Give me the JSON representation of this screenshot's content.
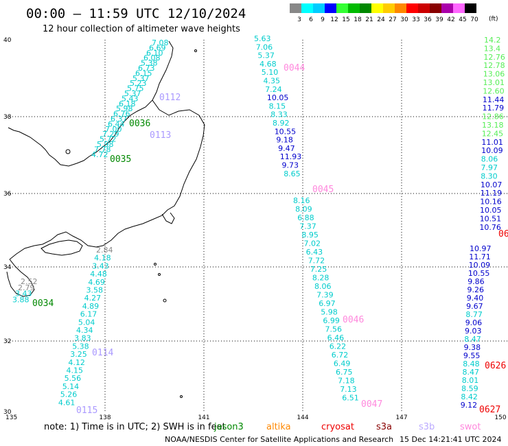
{
  "header": {
    "title": "00:00 – 11:59 UTC 12/10/2024",
    "subtitle": "12 hour collection of altimeter wave heights"
  },
  "legend": {
    "unit": "(ft)",
    "bins": [
      {
        "label": "3",
        "color": "#888888"
      },
      {
        "label": "6",
        "color": "#00ffff"
      },
      {
        "label": "9",
        "color": "#00ccff"
      },
      {
        "label": "12",
        "color": "#0000ff"
      },
      {
        "label": "15",
        "color": "#33ff33"
      },
      {
        "label": "18",
        "color": "#00bb00"
      },
      {
        "label": "21",
        "color": "#008800"
      },
      {
        "label": "24",
        "color": "#ffff00"
      },
      {
        "label": "27",
        "color": "#ffcc00"
      },
      {
        "label": "30",
        "color": "#ff8800"
      },
      {
        "label": "33",
        "color": "#ff0000"
      },
      {
        "label": "36",
        "color": "#cc0000"
      },
      {
        "label": "39",
        "color": "#880000"
      },
      {
        "label": "42",
        "color": "#aa00aa"
      },
      {
        "label": "45",
        "color": "#ff66ff"
      },
      {
        "label": "70",
        "color": "#000000"
      }
    ]
  },
  "map": {
    "lat_ticks": [
      "40",
      "38",
      "36",
      "34",
      "32",
      "30"
    ],
    "lon_ticks": [
      "135",
      "138",
      "141",
      "144",
      "147",
      "150"
    ],
    "colors": {
      "gray": "#888888",
      "cyan": "#00cccc",
      "blue": "#0000cc",
      "lgreen": "#55ee55",
      "green": "#008800",
      "red": "#ee0000",
      "pink": "#ff88dd",
      "lav": "#aa99ff"
    },
    "passes": [
      {
        "label": "0044",
        "color": "pink"
      },
      {
        "label": "0112",
        "color": "lav"
      },
      {
        "label": "0036",
        "color": "green"
      },
      {
        "label": "0113",
        "color": "lav"
      },
      {
        "label": "0035",
        "color": "green"
      },
      {
        "label": "0045",
        "color": "pink"
      },
      {
        "label": "0034",
        "color": "green"
      },
      {
        "label": "0046",
        "color": "pink"
      },
      {
        "label": "0114",
        "color": "lav"
      },
      {
        "label": "0626",
        "color": "red"
      },
      {
        "label": "0115",
        "color": "lav"
      },
      {
        "label": "0047",
        "color": "pink"
      },
      {
        "label": "0627",
        "color": "red"
      },
      {
        "label": "06",
        "color": "red"
      }
    ],
    "tracks": [
      {
        "name": "track-a",
        "values": [
          {
            "t": "5.63",
            "c": "cyan"
          },
          {
            "t": "7.06",
            "c": "cyan"
          },
          {
            "t": "5.37",
            "c": "cyan"
          },
          {
            "t": "4.68",
            "c": "cyan"
          },
          {
            "t": "5.10",
            "c": "cyan"
          },
          {
            "t": "4.35",
            "c": "cyan"
          },
          {
            "t": "7.24",
            "c": "cyan"
          },
          {
            "t": "10.05",
            "c": "blue"
          },
          {
            "t": "8.15",
            "c": "cyan"
          },
          {
            "t": "8.33",
            "c": "cyan"
          },
          {
            "t": "8.92",
            "c": "cyan"
          },
          {
            "t": "10.55",
            "c": "blue"
          },
          {
            "t": "9.18",
            "c": "blue"
          },
          {
            "t": "9.47",
            "c": "blue"
          },
          {
            "t": "11.93",
            "c": "blue"
          },
          {
            "t": "9.73",
            "c": "blue"
          },
          {
            "t": "8.65",
            "c": "cyan"
          }
        ]
      },
      {
        "name": "track-b",
        "values": [
          {
            "t": "8.16",
            "c": "cyan"
          },
          {
            "t": "8.09",
            "c": "cyan"
          },
          {
            "t": "6.88",
            "c": "cyan"
          },
          {
            "t": "7.37",
            "c": "cyan"
          },
          {
            "t": "8.95",
            "c": "cyan"
          },
          {
            "t": "7.02",
            "c": "cyan"
          },
          {
            "t": "6.43",
            "c": "cyan"
          },
          {
            "t": "7.72",
            "c": "cyan"
          },
          {
            "t": "7.25",
            "c": "cyan"
          },
          {
            "t": "8.28",
            "c": "cyan"
          },
          {
            "t": "8.06",
            "c": "cyan"
          },
          {
            "t": "7.39",
            "c": "cyan"
          },
          {
            "t": "6.97",
            "c": "cyan"
          },
          {
            "t": "5.98",
            "c": "cyan"
          },
          {
            "t": "6.99",
            "c": "cyan"
          },
          {
            "t": "7.56",
            "c": "cyan"
          },
          {
            "t": "6.46",
            "c": "cyan"
          },
          {
            "t": "6.22",
            "c": "cyan"
          },
          {
            "t": "6.72",
            "c": "cyan"
          },
          {
            "t": "6.49",
            "c": "cyan"
          },
          {
            "t": "6.75",
            "c": "cyan"
          },
          {
            "t": "7.18",
            "c": "cyan"
          },
          {
            "t": "7.13",
            "c": "cyan"
          },
          {
            "t": "6.51",
            "c": "cyan"
          }
        ]
      },
      {
        "name": "track-c",
        "values": [
          {
            "t": "14.2",
            "c": "lgreen"
          },
          {
            "t": "13.4",
            "c": "lgreen"
          },
          {
            "t": "12.76",
            "c": "lgreen"
          },
          {
            "t": "12.78",
            "c": "lgreen"
          },
          {
            "t": "13.06",
            "c": "lgreen"
          },
          {
            "t": "13.01",
            "c": "lgreen"
          },
          {
            "t": "12.60",
            "c": "lgreen"
          },
          {
            "t": "11.44",
            "c": "blue"
          },
          {
            "t": "11.79",
            "c": "blue"
          },
          {
            "t": "12.86",
            "c": "lgreen"
          },
          {
            "t": "13.18",
            "c": "lgreen"
          },
          {
            "t": "12.45",
            "c": "lgreen"
          },
          {
            "t": "11.01",
            "c": "blue"
          },
          {
            "t": "10.09",
            "c": "blue"
          },
          {
            "t": "8.06",
            "c": "cyan"
          },
          {
            "t": "7.97",
            "c": "cyan"
          },
          {
            "t": "8.30",
            "c": "cyan"
          },
          {
            "t": "10.07",
            "c": "blue"
          },
          {
            "t": "11.19",
            "c": "blue"
          },
          {
            "t": "10.16",
            "c": "blue"
          },
          {
            "t": "10.05",
            "c": "blue"
          },
          {
            "t": "10.51",
            "c": "blue"
          },
          {
            "t": "10.76",
            "c": "blue"
          }
        ]
      },
      {
        "name": "track-d",
        "values": [
          {
            "t": "10.97",
            "c": "blue"
          },
          {
            "t": "11.71",
            "c": "blue"
          },
          {
            "t": "10.09",
            "c": "blue"
          },
          {
            "t": "10.55",
            "c": "blue"
          },
          {
            "t": "9.86",
            "c": "blue"
          },
          {
            "t": "9.26",
            "c": "blue"
          },
          {
            "t": "9.40",
            "c": "blue"
          },
          {
            "t": "9.67",
            "c": "blue"
          },
          {
            "t": "8.77",
            "c": "cyan"
          },
          {
            "t": "9.06",
            "c": "blue"
          },
          {
            "t": "9.03",
            "c": "blue"
          },
          {
            "t": "8.47",
            "c": "cyan"
          },
          {
            "t": "9.38",
            "c": "blue"
          },
          {
            "t": "9.55",
            "c": "blue"
          },
          {
            "t": "8.48",
            "c": "cyan"
          },
          {
            "t": "8.47",
            "c": "cyan"
          },
          {
            "t": "8.01",
            "c": "cyan"
          },
          {
            "t": "8.59",
            "c": "cyan"
          },
          {
            "t": "8.42",
            "c": "cyan"
          },
          {
            "t": "9.12",
            "c": "blue"
          }
        ]
      },
      {
        "name": "track-e",
        "values": [
          {
            "t": "7.08",
            "c": "cyan"
          },
          {
            "t": "6.69",
            "c": "cyan"
          },
          {
            "t": "6.10",
            "c": "cyan"
          },
          {
            "t": "6.08",
            "c": "cyan"
          },
          {
            "t": "5.38",
            "c": "cyan"
          },
          {
            "t": "6.73",
            "c": "cyan"
          },
          {
            "t": "6.15",
            "c": "cyan"
          },
          {
            "t": "5.37",
            "c": "cyan"
          },
          {
            "t": "5.23",
            "c": "cyan"
          },
          {
            "t": "5.75",
            "c": "cyan"
          },
          {
            "t": "5.37",
            "c": "cyan"
          },
          {
            "t": "5.43",
            "c": "cyan"
          },
          {
            "t": "6.18",
            "c": "cyan"
          },
          {
            "t": "5.98",
            "c": "cyan"
          },
          {
            "t": "6.76",
            "c": "cyan"
          },
          {
            "t": "6.37",
            "c": "cyan"
          },
          {
            "t": "6.44",
            "c": "cyan"
          },
          {
            "t": "7.00",
            "c": "cyan"
          },
          {
            "t": "7.29",
            "c": "cyan"
          },
          {
            "t": "5.72",
            "c": "cyan"
          },
          {
            "t": "5.98",
            "c": "cyan"
          },
          {
            "t": "7.78",
            "c": "cyan"
          },
          {
            "t": "4.72",
            "c": "cyan"
          }
        ]
      },
      {
        "name": "track-f",
        "values": [
          {
            "t": "2.84",
            "c": "gray"
          },
          {
            "t": "4.18",
            "c": "cyan"
          },
          {
            "t": "3.43",
            "c": "cyan"
          },
          {
            "t": "4.48",
            "c": "cyan"
          },
          {
            "t": "4.69",
            "c": "cyan"
          },
          {
            "t": "3.58",
            "c": "cyan"
          },
          {
            "t": "4.27",
            "c": "cyan"
          },
          {
            "t": "4.89",
            "c": "cyan"
          },
          {
            "t": "6.17",
            "c": "cyan"
          },
          {
            "t": "5.04",
            "c": "cyan"
          },
          {
            "t": "4.34",
            "c": "cyan"
          },
          {
            "t": "3.83",
            "c": "cyan"
          },
          {
            "t": "5.38",
            "c": "cyan"
          },
          {
            "t": "3.25",
            "c": "cyan"
          },
          {
            "t": "4.12",
            "c": "cyan"
          },
          {
            "t": "4.15",
            "c": "cyan"
          },
          {
            "t": "5.56",
            "c": "cyan"
          },
          {
            "t": "5.14",
            "c": "cyan"
          },
          {
            "t": "5.26",
            "c": "cyan"
          },
          {
            "t": "4.61",
            "c": "cyan"
          }
        ]
      },
      {
        "name": "track-g",
        "values": [
          {
            "t": "2.52",
            "c": "gray"
          },
          {
            "t": "2.79",
            "c": "gray"
          },
          {
            "t": "3.43",
            "c": "cyan"
          },
          {
            "t": "3.88",
            "c": "cyan"
          }
        ]
      }
    ]
  },
  "footer": {
    "note": "note:  1) Time is in UTC;  2) SWH is in feet",
    "satellites": [
      {
        "name": "jason3",
        "color": "#008800"
      },
      {
        "name": "altika",
        "color": "#ff8800"
      },
      {
        "name": "cryosat",
        "color": "#ee0000"
      },
      {
        "name": "s3a",
        "color": "#880000"
      },
      {
        "name": "s3b",
        "color": "#bbaaff"
      },
      {
        "name": "swot",
        "color": "#ff88dd"
      }
    ],
    "credit": "NOAA/NESDIS Center for Satellite Applications and Research",
    "timestamp": "15 Dec 14:21:41 UTC 2024"
  }
}
